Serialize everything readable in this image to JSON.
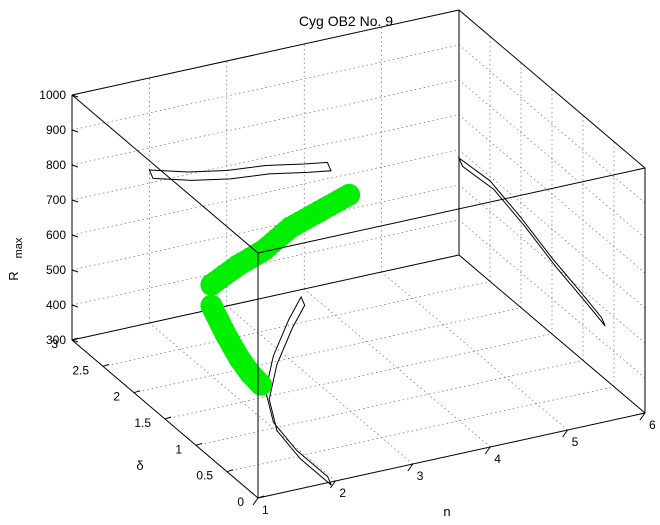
{
  "chart_data": {
    "type": "scatter",
    "title": "Cyg OB2 No. 9",
    "xlabel": "n",
    "ylabel": "δ",
    "zlabel": "R",
    "zlabel_sub": "max",
    "xlim": [
      1,
      6
    ],
    "ylim": [
      0,
      3
    ],
    "zlim": [
      300,
      1000
    ],
    "xticks": [
      "1",
      "2",
      "3",
      "4",
      "5",
      "6"
    ],
    "yticks": [
      "0",
      "0.5",
      "1",
      "1.5",
      "2",
      "2.5",
      "3"
    ],
    "zticks": [
      "300",
      "400",
      "500",
      "600",
      "700",
      "800",
      "900",
      "1000"
    ],
    "grid": true,
    "series": [
      {
        "marker_color": "#00ee00",
        "points": [
          {
            "n": 2.0,
            "d": 2.0,
            "r": 560
          },
          {
            "n": 2.5,
            "d": 2.2,
            "r": 560
          },
          {
            "n": 3.0,
            "d": 2.4,
            "r": 550
          },
          {
            "n": 3.5,
            "d": 2.6,
            "r": 560
          },
          {
            "n": 4.0,
            "d": 2.75,
            "r": 560
          },
          {
            "n": 4.5,
            "d": 2.9,
            "r": 560
          },
          {
            "n": 2.0,
            "d": 2.0,
            "r": 500
          },
          {
            "n": 2.1,
            "d": 1.9,
            "r": 430
          },
          {
            "n": 2.2,
            "d": 1.8,
            "r": 370
          },
          {
            "n": 2.3,
            "d": 1.75,
            "r": 330
          },
          {
            "n": 2.4,
            "d": 1.7,
            "r": 300
          }
        ]
      }
    ],
    "projections": [
      {
        "plane": "n-R at δ=3",
        "path": [
          [
            2.0,
            720
          ],
          [
            2.5,
            690
          ],
          [
            3.0,
            670
          ],
          [
            3.5,
            660
          ],
          [
            4.0,
            640
          ],
          [
            4.3,
            630
          ]
        ]
      },
      {
        "plane": "δ-R at n=6",
        "path": [
          [
            3.0,
            560
          ],
          [
            2.5,
            570
          ],
          [
            2.0,
            540
          ],
          [
            1.5,
            500
          ],
          [
            1.0,
            470
          ],
          [
            0.7,
            450
          ]
        ]
      },
      {
        "plane": "n-δ at R=300",
        "path": [
          [
            1.9,
            0.0
          ],
          [
            1.9,
            0.5
          ],
          [
            2.0,
            1.0
          ],
          [
            2.3,
            1.5
          ],
          [
            2.8,
            2.0
          ],
          [
            3.4,
            2.5
          ],
          [
            3.8,
            2.8
          ]
        ]
      }
    ]
  }
}
